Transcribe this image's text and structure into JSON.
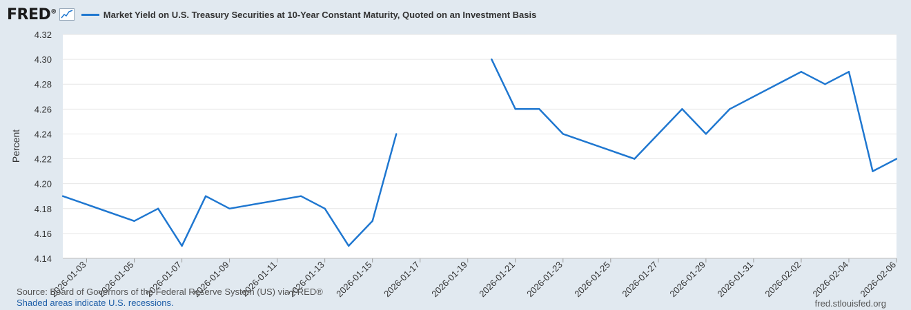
{
  "header": {
    "logo": "FRED",
    "logo_mark": "®",
    "logo_icon": "chart-line-icon",
    "series_title": "Market Yield on U.S. Treasury Securities at 10-Year Constant Maturity, Quoted on an Investment Basis"
  },
  "footer": {
    "source": "Source: Board of Governors of the Federal Reserve System (US) via FRED®",
    "shaded": "Shaded areas indicate U.S. recessions.",
    "url": "fred.stlouisfed.org"
  },
  "colors": {
    "line": "#1f77d0",
    "plot_bg": "#ffffff",
    "page_bg": "#e1e9f0",
    "grid": "#e6e6e6"
  },
  "chart_data": {
    "type": "line",
    "title": "Market Yield on U.S. Treasury Securities at 10-Year Constant Maturity, Quoted on an Investment Basis",
    "ylabel": "Percent",
    "xlabel": "",
    "ylim": [
      4.14,
      4.32
    ],
    "xlim": [
      "2026-01-02",
      "2026-02-06"
    ],
    "grid": true,
    "y_ticks": [
      "4.14",
      "4.16",
      "4.18",
      "4.20",
      "4.22",
      "4.24",
      "4.26",
      "4.28",
      "4.30",
      "4.32"
    ],
    "x_ticks": [
      "2026-01-03",
      "2026-01-05",
      "2026-01-07",
      "2026-01-09",
      "2026-01-11",
      "2026-01-13",
      "2026-01-15",
      "2026-01-17",
      "2026-01-19",
      "2026-01-21",
      "2026-01-23",
      "2026-01-25",
      "2026-01-27",
      "2026-01-29",
      "2026-01-31",
      "2026-02-02",
      "2026-02-04",
      "2026-02-06"
    ],
    "series": [
      {
        "name": "Market Yield on U.S. Treasury Securities at 10-Year Constant Maturity, Quoted on an Investment Basis",
        "segments": [
          [
            [
              "2026-01-02",
              4.19
            ],
            [
              "2026-01-05",
              4.17
            ],
            [
              "2026-01-06",
              4.18
            ],
            [
              "2026-01-07",
              4.15
            ],
            [
              "2026-01-08",
              4.19
            ],
            [
              "2026-01-09",
              4.18
            ],
            [
              "2026-01-12",
              4.19
            ],
            [
              "2026-01-13",
              4.18
            ],
            [
              "2026-01-14",
              4.15
            ],
            [
              "2026-01-15",
              4.17
            ],
            [
              "2026-01-16",
              4.24
            ]
          ],
          [
            [
              "2026-01-20",
              4.3
            ],
            [
              "2026-01-21",
              4.26
            ],
            [
              "2026-01-22",
              4.26
            ],
            [
              "2026-01-23",
              4.24
            ],
            [
              "2026-01-26",
              4.22
            ],
            [
              "2026-01-28",
              4.26
            ],
            [
              "2026-01-29",
              4.24
            ],
            [
              "2026-01-30",
              4.26
            ],
            [
              "2026-02-02",
              4.29
            ],
            [
              "2026-02-03",
              4.28
            ],
            [
              "2026-02-04",
              4.29
            ],
            [
              "2026-02-05",
              4.21
            ],
            [
              "2026-02-06",
              4.22
            ]
          ]
        ]
      }
    ]
  }
}
